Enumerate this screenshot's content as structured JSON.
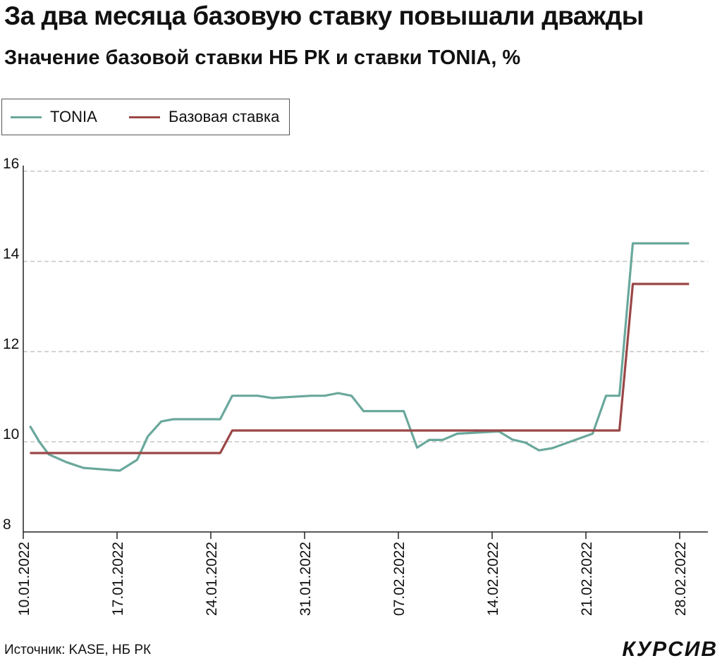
{
  "title": "За два месяца базовую ставку повышали дважды",
  "subtitle": "Значение базовой ставки НБ РК и ставки TONIA, %",
  "source": "Источник: KASE, НБ РК",
  "brand": "КУРСИВ",
  "legend": [
    {
      "name": "TONIA",
      "color": "#6aa89c"
    },
    {
      "name": "Базовая ставка",
      "color": "#9b4646"
    }
  ],
  "chart_data": {
    "type": "line",
    "ylim": [
      8,
      16
    ],
    "yticks": [
      8,
      10,
      12,
      14,
      16
    ],
    "grid": true,
    "legend_position": "top-left",
    "xlabels": [
      "10.01.2022",
      "17.01.2022",
      "24.01.2022",
      "31.01.2022",
      "07.02.2022",
      "14.02.2022",
      "21.02.2022",
      "28.02.2022"
    ],
    "xlabel_days": [
      0,
      7,
      14,
      21,
      28,
      35,
      42,
      49
    ],
    "series": [
      {
        "name": "TONIA",
        "color": "#6aa89c",
        "points": [
          [
            0.5,
            10.35
          ],
          [
            1.2,
            10.0
          ],
          [
            1.9,
            9.72
          ],
          [
            3.2,
            9.55
          ],
          [
            4.5,
            9.42
          ],
          [
            7.2,
            9.36
          ],
          [
            8.5,
            9.6
          ],
          [
            9.3,
            10.12
          ],
          [
            10.3,
            10.45
          ],
          [
            11.2,
            10.5
          ],
          [
            14.7,
            10.5
          ],
          [
            15.6,
            11.02
          ],
          [
            17.5,
            11.02
          ],
          [
            18.6,
            10.97
          ],
          [
            21.5,
            11.02
          ],
          [
            22.5,
            11.02
          ],
          [
            23.5,
            11.08
          ],
          [
            24.5,
            11.02
          ],
          [
            25.4,
            10.68
          ],
          [
            28.4,
            10.68
          ],
          [
            29.4,
            9.87
          ],
          [
            30.3,
            10.04
          ],
          [
            31.3,
            10.04
          ],
          [
            32.4,
            10.18
          ],
          [
            35.5,
            10.23
          ],
          [
            36.5,
            10.05
          ],
          [
            37.5,
            9.98
          ],
          [
            38.5,
            9.81
          ],
          [
            39.5,
            9.86
          ],
          [
            42.5,
            10.18
          ],
          [
            43.5,
            11.02
          ],
          [
            44.5,
            11.02
          ],
          [
            45.5,
            14.4
          ],
          [
            49.7,
            14.4
          ]
        ]
      },
      {
        "name": "Базовая ставка",
        "color": "#9b4646",
        "points": [
          [
            0.5,
            9.75
          ],
          [
            14.7,
            9.75
          ],
          [
            15.6,
            10.25
          ],
          [
            44.5,
            10.25
          ],
          [
            45.5,
            13.5
          ],
          [
            49.7,
            13.5
          ]
        ]
      }
    ]
  }
}
